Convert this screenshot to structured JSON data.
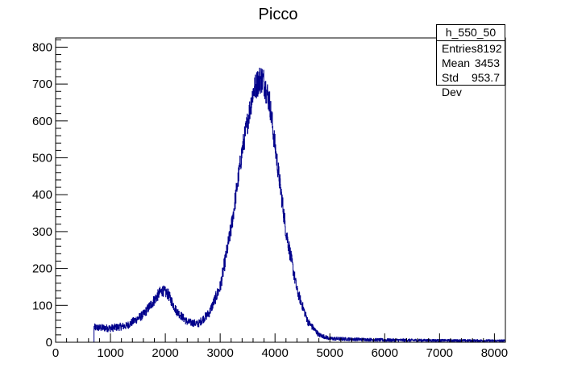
{
  "chart_data": {
    "type": "histogram",
    "title": "Picco",
    "xlabel": "",
    "ylabel": "",
    "xlim": [
      0,
      8200
    ],
    "ylim": [
      0,
      825
    ],
    "x_ticks": [
      0,
      1000,
      2000,
      3000,
      4000,
      5000,
      6000,
      7000,
      8000
    ],
    "y_ticks": [
      0,
      100,
      200,
      300,
      400,
      500,
      600,
      700,
      800
    ],
    "x_tick_labels": [
      "0",
      "1000",
      "2000",
      "3000",
      "4000",
      "5000",
      "6000",
      "7000",
      "8000"
    ],
    "y_tick_labels": [
      "0",
      "100",
      "200",
      "300",
      "400",
      "500",
      "600",
      "700",
      "800"
    ],
    "series_color": "#00008b",
    "profile": {
      "x": [
        700,
        1000,
        1300,
        1600,
        1800,
        1900,
        1950,
        2050,
        2200,
        2400,
        2600,
        2800,
        3000,
        3200,
        3400,
        3600,
        3700,
        3750,
        3800,
        3900,
        4000,
        4200,
        4400,
        4600,
        4800,
        5000,
        5500,
        6000,
        7000,
        8200
      ],
      "y": [
        40,
        38,
        45,
        75,
        115,
        135,
        140,
        130,
        85,
        55,
        50,
        80,
        150,
        310,
        520,
        680,
        710,
        715,
        705,
        650,
        530,
        300,
        140,
        55,
        20,
        10,
        8,
        6,
        5,
        4
      ],
      "noise": [
        10,
        10,
        10,
        12,
        15,
        15,
        15,
        15,
        12,
        10,
        10,
        12,
        18,
        25,
        30,
        35,
        40,
        40,
        40,
        35,
        30,
        25,
        15,
        10,
        6,
        5,
        4,
        4,
        3,
        3
      ]
    },
    "stats": {
      "name": "h_550_50",
      "rows": [
        {
          "label": "Entries",
          "value": "8192"
        },
        {
          "label": "Mean",
          "value": "3453"
        },
        {
          "label": "Std Dev",
          "value": "953.7"
        }
      ]
    }
  }
}
